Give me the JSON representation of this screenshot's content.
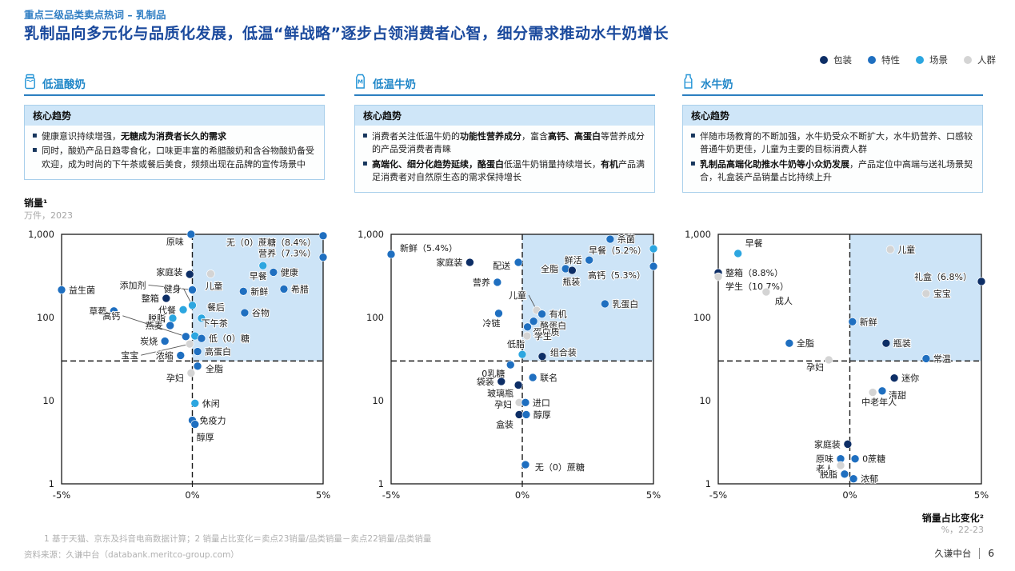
{
  "header": {
    "eyebrow": "重点三级品类卖点热词 – 乳制品",
    "title": "乳制品向多元化与品质化发展，低温“鲜战略”逐步占领消费者心智，细分需求推动水牛奶增长"
  },
  "legend": [
    {
      "key": "pkg",
      "label": "包装",
      "color": "#0d2e66"
    },
    {
      "key": "feat",
      "label": "特性",
      "color": "#1f6fc0"
    },
    {
      "key": "scene",
      "label": "场景",
      "color": "#2ca6e0"
    },
    {
      "key": "crowd",
      "label": "人群",
      "color": "#d4d4d4"
    }
  ],
  "colors": {
    "pkg": "#0d2e66",
    "feat": "#1f6fc0",
    "scene": "#2ca6e0",
    "crowd": "#d4d4d4",
    "highlight": "#cde4f7"
  },
  "axis": {
    "y_title": "销量¹",
    "y_subtitle": "万件，2023",
    "x_title": "销量占比变化²",
    "x_subtitle": "%，22-23",
    "y_ticks": [
      "1,000",
      "100",
      "10",
      "1"
    ],
    "x_ticks": [
      "-5%",
      "0%",
      "5%"
    ]
  },
  "footer": {
    "note": "1   基于天猫、京东及抖音电商数据计算；2   销量占比变化＝卖点23销量/品类销量－卖点22销量/品类销量",
    "source": "资料来源：久谦中台（databank.meritco-group.com）",
    "brand": "久谦中台",
    "page": "6"
  },
  "sections": [
    {
      "name": "低温酸奶",
      "trend_title": "核心趋势",
      "bullets": [
        [
          {
            "t": "健康意识持续增强，",
            "b": 0
          },
          {
            "t": "无糖成为消费者长久的需求",
            "b": 1
          }
        ],
        [
          {
            "t": "同时，酸奶产品日趋零食化，口味更丰富的希腊酸奶和含谷物酸奶备受欢迎，成为时尚的下午茶或餐后美食，频频出现在品牌的宣传场景中",
            "b": 0
          }
        ]
      ]
    },
    {
      "name": "低温牛奶",
      "trend_title": "核心趋势",
      "bullets": [
        [
          {
            "t": "消费者关注低温牛奶的",
            "b": 0
          },
          {
            "t": "功能性营养成分",
            "b": 1
          },
          {
            "t": "，富含",
            "b": 0
          },
          {
            "t": "高钙、高蛋白",
            "b": 1
          },
          {
            "t": "等营养成分的产品受消费者青睐",
            "b": 0
          }
        ],
        [
          {
            "t": "高端化、细分化趋势延续，酪蛋白",
            "b": 1
          },
          {
            "t": "低温牛奶销量持续增长，",
            "b": 0
          },
          {
            "t": "有机",
            "b": 1
          },
          {
            "t": "产品满足消费者对自然原生态的需求保持增长",
            "b": 0
          }
        ]
      ]
    },
    {
      "name": "水牛奶",
      "trend_title": "核心趋势",
      "bullets": [
        [
          {
            "t": "伴随市场教育的不断加强，水牛奶受众不断扩大，水牛奶营养、口感较普通牛奶更佳，儿童为主要的目标消费人群",
            "b": 0
          }
        ],
        [
          {
            "t": "乳制品高端化助推水牛奶等小众奶发展",
            "b": 1
          },
          {
            "t": "，产品定位中高端与送礼场景契合，礼盒装产品销量占比持续上升",
            "b": 0
          }
        ]
      ]
    }
  ],
  "chart_data": [
    {
      "type": "scatter",
      "title": "低温酸奶",
      "xlabel": "销量占比变化 %, 22-23",
      "ylabel": "销量 万件, 2023",
      "x_range": [
        -5,
        5
      ],
      "y_range_log": [
        1,
        1000
      ],
      "threshold_y": 30,
      "highlight_quadrant": "top-right",
      "points": [
        {
          "t": "原味",
          "c": "feat",
          "x": -0.05,
          "y": 1000,
          "lp": [
            -9,
            13,
            "end"
          ]
        },
        {
          "t": "无（0）蔗糖（8.4%）",
          "c": "feat",
          "x": 5,
          "y": 960,
          "lp": [
            -9,
            12,
            "end"
          ]
        },
        {
          "t": "营养（7.3%）",
          "c": "feat",
          "x": 5,
          "y": 530,
          "lp": [
            -9,
            -1,
            "end"
          ]
        },
        {
          "t": "家庭装",
          "c": "pkg",
          "x": -0.1,
          "y": 330,
          "lp": [
            -9,
            1,
            "end"
          ]
        },
        {
          "t": "益生菌",
          "c": "feat",
          "x": -5,
          "y": 215,
          "lp": "r"
        },
        {
          "t": "添加剂",
          "c": "feat",
          "x": 0,
          "y": 215,
          "lp": [
            -58,
            -2,
            "end"
          ],
          "ln": 1
        },
        {
          "t": "儿童",
          "c": "crowd",
          "x": 0.7,
          "y": 335,
          "lp": [
            4,
            19,
            "middle"
          ]
        },
        {
          "t": "早餐",
          "c": "scene",
          "x": 2.7,
          "y": 420,
          "lp": [
            5,
            17,
            "end"
          ]
        },
        {
          "t": "健康",
          "c": "feat",
          "x": 3.1,
          "y": 350,
          "lp": "r"
        },
        {
          "t": "新鲜",
          "c": "feat",
          "x": 1.95,
          "y": 206,
          "lp": "r"
        },
        {
          "t": "希腊",
          "c": "feat",
          "x": 3.5,
          "y": 220,
          "lp": "r"
        },
        {
          "t": "整箱",
          "c": "pkg",
          "x": -1.0,
          "y": 170,
          "lp": "l"
        },
        {
          "t": "健身",
          "c": "scene",
          "x": 0,
          "y": 140,
          "lp": [
            -14,
            -17,
            "end"
          ],
          "ln": 1
        },
        {
          "t": "草莓",
          "c": "feat",
          "x": -3.0,
          "y": 120,
          "lp": "l"
        },
        {
          "t": "代餐",
          "c": "scene",
          "x": -0.35,
          "y": 124,
          "lp": "l"
        },
        {
          "t": "脱脂",
          "c": "scene",
          "x": -0.75,
          "y": 98,
          "lp": "l"
        },
        {
          "t": "餐后",
          "c": "scene",
          "x": 0.35,
          "y": 98,
          "lp": [
            7,
            -10,
            "start"
          ]
        },
        {
          "t": "谷物",
          "c": "feat",
          "x": 2.0,
          "y": 114,
          "lp": "r"
        },
        {
          "t": "燕麦",
          "c": "feat",
          "x": -0.85,
          "y": 80,
          "lp": "l"
        },
        {
          "t": "下午茶",
          "c": "scene",
          "x": 0.1,
          "y": 60,
          "lp": [
            8,
            -12,
            "start"
          ]
        },
        {
          "t": "高钙",
          "c": "feat",
          "x": -0.25,
          "y": 59,
          "lp": [
            -82,
            -22,
            "end"
          ],
          "ln": 1
        },
        {
          "t": "低（0）糖",
          "c": "feat",
          "x": 0.35,
          "y": 56,
          "lp": "r"
        },
        {
          "t": "炭烧",
          "c": "feat",
          "x": -1.05,
          "y": 52,
          "lp": "l"
        },
        {
          "t": "宝宝",
          "c": "crowd",
          "x": -0.1,
          "y": 48,
          "lp": [
            -64,
            18,
            "end"
          ],
          "ln": 1
        },
        {
          "t": "高蛋白",
          "c": "feat",
          "x": 0.2,
          "y": 39,
          "lp": "r"
        },
        {
          "t": "浓缩",
          "c": "feat",
          "x": -0.45,
          "y": 35,
          "lp": "l"
        },
        {
          "t": "全脂",
          "c": "feat",
          "x": 0.2,
          "y": 26,
          "lp": [
            10,
            7,
            "start"
          ]
        },
        {
          "t": "孕妇",
          "c": "crowd",
          "x": -0.05,
          "y": 21.5,
          "lp": [
            -9,
            10,
            "end"
          ]
        },
        {
          "t": "休闲",
          "c": "scene",
          "x": 0.1,
          "y": 9.3,
          "lp": "r"
        },
        {
          "t": "免疫力",
          "c": "feat",
          "x": 0,
          "y": 5.8,
          "lp": "r"
        },
        {
          "t": "醇厚",
          "c": "feat",
          "x": 0.1,
          "y": 5.2,
          "lp": [
            2,
            20,
            "start"
          ]
        }
      ]
    },
    {
      "type": "scatter",
      "title": "低温牛奶",
      "xlabel": "销量占比变化 %, 22-23",
      "ylabel": "销量 万件, 2023",
      "x_range": [
        -5,
        5
      ],
      "y_range_log": [
        1,
        1000
      ],
      "threshold_y": 30,
      "highlight_quadrant": "top-right",
      "points": [
        {
          "t": "新鲜（5.4%）",
          "c": "feat",
          "x": -5,
          "y": 575,
          "lp": [
            11,
            -4,
            "start"
          ]
        },
        {
          "t": "家庭装",
          "c": "pkg",
          "x": -2.0,
          "y": 460,
          "lp": "l"
        },
        {
          "t": "配送",
          "c": "feat",
          "x": -0.15,
          "y": 460,
          "lp": [
            -10,
            8,
            "end"
          ]
        },
        {
          "t": "营养",
          "c": "feat",
          "x": -0.95,
          "y": 265,
          "lp": "l"
        },
        {
          "t": "冷链",
          "c": "feat",
          "x": -0.9,
          "y": 112,
          "lp": [
            2,
            16,
            "end"
          ]
        },
        {
          "t": "低脂",
          "c": "scene",
          "x": 0,
          "y": 36,
          "lp": [
            3,
            -9,
            "end"
          ]
        },
        {
          "t": "0乳糖",
          "c": "feat",
          "x": -0.45,
          "y": 27,
          "lp": [
            -7,
            15,
            "end"
          ]
        },
        {
          "t": "杀菌",
          "c": "feat",
          "x": 3.35,
          "y": 875,
          "lp": "r"
        },
        {
          "t": "早餐（5.2%）",
          "c": "scene",
          "x": 5,
          "y": 670,
          "lp": [
            -9,
            6,
            "end"
          ]
        },
        {
          "t": "鲜活",
          "c": "feat",
          "x": 2.55,
          "y": 490,
          "lp": "l"
        },
        {
          "t": "全脂",
          "c": "feat",
          "x": 1.65,
          "y": 386,
          "lp": "l"
        },
        {
          "t": "瓶装",
          "c": "pkg",
          "x": 1.9,
          "y": 369,
          "lp": [
            -1,
            18,
            "middle"
          ]
        },
        {
          "t": "高钙（5.3%）",
          "c": "feat",
          "x": 5,
          "y": 412,
          "lp": [
            -10,
            15,
            "end"
          ]
        },
        {
          "t": "乳蛋白",
          "c": "feat",
          "x": 3.15,
          "y": 146,
          "lp": "r"
        },
        {
          "t": "儿童",
          "c": "crowd",
          "x": 0.55,
          "y": 122,
          "lp": [
            -13,
            -15,
            "end"
          ],
          "ln": 1
        },
        {
          "t": "有机",
          "c": "feat",
          "x": 0.75,
          "y": 110,
          "lp": "r"
        },
        {
          "t": "酪蛋白",
          "c": "feat",
          "x": 0.43,
          "y": 90,
          "lp": [
            8,
            9,
            "start"
          ]
        },
        {
          "t": "蛋白质",
          "c": "feat",
          "x": 0.2,
          "y": 77,
          "lp": [
            7,
            10,
            "start"
          ]
        },
        {
          "t": "学生",
          "c": "crowd",
          "x": 0.18,
          "y": 60,
          "lp": "r"
        },
        {
          "t": "组合装",
          "c": "pkg",
          "x": 0.76,
          "y": 34,
          "lp": [
            10,
            -1,
            "start"
          ]
        },
        {
          "t": "联名",
          "c": "feat",
          "x": 0.4,
          "y": 19,
          "lp": "r"
        },
        {
          "t": "袋装",
          "c": "pkg",
          "x": -0.8,
          "y": 17,
          "lp": "l"
        },
        {
          "t": "玻璃瓶",
          "c": "pkg",
          "x": -0.15,
          "y": 15.4,
          "lp": [
            -6,
            14,
            "end"
          ]
        },
        {
          "t": "孕妇",
          "c": "crowd",
          "x": -0.12,
          "y": 9.5,
          "lp": [
            -9,
            6,
            "end"
          ]
        },
        {
          "t": "进口",
          "c": "feat",
          "x": 0.12,
          "y": 9.5,
          "lp": "r"
        },
        {
          "t": "盒装",
          "c": "pkg",
          "x": -0.12,
          "y": 6.8,
          "lp": [
            -7,
            16,
            "end"
          ]
        },
        {
          "t": "醇厚",
          "c": "feat",
          "x": 0.15,
          "y": 6.8,
          "lp": "r"
        },
        {
          "t": "无（0）蔗糖",
          "c": "feat",
          "x": 0.12,
          "y": 1.7,
          "lp": [
            12,
            7,
            "start"
          ]
        }
      ]
    },
    {
      "type": "scatter",
      "title": "水牛奶",
      "xlabel": "销量占比变化 %, 22-23",
      "ylabel": "销量 万件, 2023",
      "x_range": [
        -5,
        5
      ],
      "y_range_log": [
        1,
        1000
      ],
      "threshold_y": 30,
      "highlight_quadrant": "top-right",
      "points": [
        {
          "t": "早餐",
          "c": "scene",
          "x": -4.25,
          "y": 588,
          "lp": [
            9,
            -9,
            "start"
          ]
        },
        {
          "t": "整箱（8.8%）",
          "c": "pkg",
          "x": -5,
          "y": 345,
          "lp": "r"
        },
        {
          "t": "学生（10.7%）",
          "c": "crowd",
          "x": -5,
          "y": 309,
          "lp": [
            9,
            16,
            "start"
          ]
        },
        {
          "t": "成人",
          "c": "crowd",
          "x": -3.18,
          "y": 203,
          "lp": [
            11,
            15,
            "start"
          ]
        },
        {
          "t": "全脂",
          "c": "feat",
          "x": -2.3,
          "y": 49,
          "lp": "r"
        },
        {
          "t": "孕妇",
          "c": "crowd",
          "x": -0.8,
          "y": 31,
          "lp": [
            -6,
            13,
            "end"
          ]
        },
        {
          "t": "儿童",
          "c": "crowd",
          "x": 1.54,
          "y": 657,
          "lp": "r"
        },
        {
          "t": "礼盒（6.8%）",
          "c": "pkg",
          "x": 5,
          "y": 271,
          "lp": [
            -12,
            -2,
            "end"
          ]
        },
        {
          "t": "宝宝",
          "c": "crowd",
          "x": 2.9,
          "y": 194,
          "lp": "r"
        },
        {
          "t": "新鲜",
          "c": "feat",
          "x": 0.1,
          "y": 89,
          "lp": "r"
        },
        {
          "t": "瓶装",
          "c": "pkg",
          "x": 1.38,
          "y": 49,
          "lp": "r"
        },
        {
          "t": "常温",
          "c": "feat",
          "x": 2.9,
          "y": 32,
          "lp": "r"
        },
        {
          "t": "迷你",
          "c": "pkg",
          "x": 1.69,
          "y": 18.7,
          "lp": "r"
        },
        {
          "t": "清甜",
          "c": "feat",
          "x": 1.23,
          "y": 13.1,
          "lp": [
            8,
            9,
            "start"
          ]
        },
        {
          "t": "中老年人",
          "c": "crowd",
          "x": 0.87,
          "y": 12.6,
          "lp": [
            8,
            16,
            "middle"
          ]
        },
        {
          "t": "家庭装",
          "c": "pkg",
          "x": -0.08,
          "y": 3.0,
          "lp": "l"
        },
        {
          "t": "原味",
          "c": "feat",
          "x": -0.35,
          "y": 2.0,
          "lp": "l"
        },
        {
          "t": "老人",
          "c": "crowd",
          "x": -0.35,
          "y": 1.66,
          "lp": [
            -9,
            8,
            "end"
          ]
        },
        {
          "t": "0蔗糖",
          "c": "feat",
          "x": 0.2,
          "y": 2.0,
          "lp": "r"
        },
        {
          "t": "脱脂",
          "c": "feat",
          "x": -0.2,
          "y": 1.31,
          "lp": "l"
        },
        {
          "t": "浓郁",
          "c": "feat",
          "x": 0.14,
          "y": 1.15,
          "lp": "r"
        }
      ]
    }
  ]
}
